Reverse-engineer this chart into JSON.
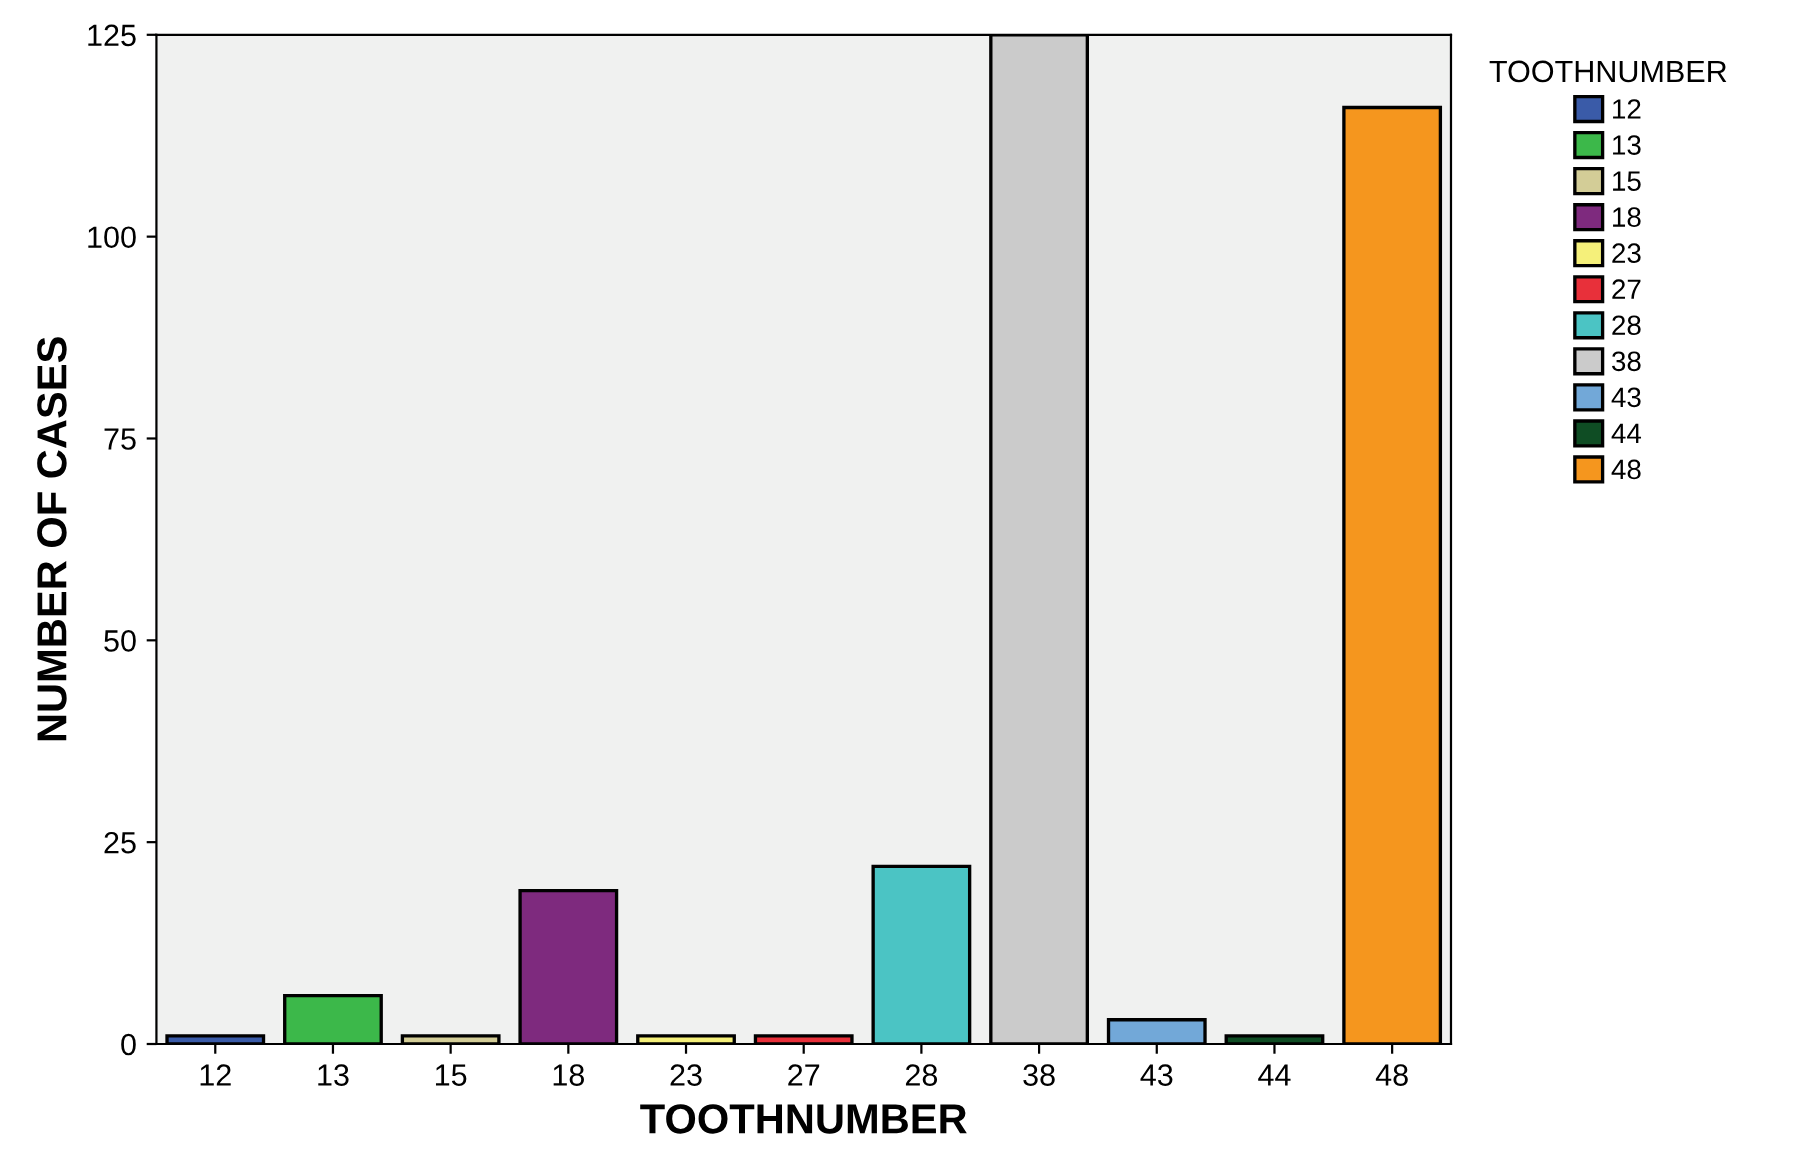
{
  "chart_data": {
    "type": "bar",
    "xlabel": "TOOTHNUMBER",
    "ylabel": "NUMBER OF CASES",
    "legend_title": "TOOTHNUMBER",
    "categories": [
      "12",
      "13",
      "15",
      "18",
      "23",
      "27",
      "28",
      "38",
      "43",
      "44",
      "48"
    ],
    "series": [
      {
        "name": "12",
        "color": "#3a5ba8",
        "values": [
          1,
          null,
          null,
          null,
          null,
          null,
          null,
          null,
          null,
          null,
          null
        ]
      },
      {
        "name": "13",
        "color": "#3cb84a",
        "values": [
          null,
          6,
          null,
          null,
          null,
          null,
          null,
          null,
          null,
          null,
          null
        ]
      },
      {
        "name": "15",
        "color": "#d3cd97",
        "values": [
          null,
          null,
          1,
          null,
          null,
          null,
          null,
          null,
          null,
          null,
          null
        ]
      },
      {
        "name": "18",
        "color": "#7e2a7e",
        "values": [
          null,
          null,
          null,
          19,
          null,
          null,
          null,
          null,
          null,
          null,
          null
        ]
      },
      {
        "name": "23",
        "color": "#f5f07a",
        "values": [
          null,
          null,
          null,
          null,
          1,
          null,
          null,
          null,
          null,
          null,
          null
        ]
      },
      {
        "name": "27",
        "color": "#e8303a",
        "values": [
          null,
          null,
          null,
          null,
          null,
          1,
          null,
          null,
          null,
          null,
          null
        ]
      },
      {
        "name": "28",
        "color": "#4bc4c4",
        "values": [
          null,
          null,
          null,
          null,
          null,
          null,
          22,
          null,
          null,
          null,
          null
        ]
      },
      {
        "name": "38",
        "color": "#cbcbcb",
        "values": [
          null,
          null,
          null,
          null,
          null,
          null,
          null,
          125,
          null,
          null,
          null
        ]
      },
      {
        "name": "43",
        "color": "#72a8d8",
        "values": [
          null,
          null,
          null,
          null,
          null,
          null,
          null,
          null,
          3,
          null,
          null
        ]
      },
      {
        "name": "44",
        "color": "#0f4d24",
        "values": [
          null,
          null,
          null,
          null,
          null,
          null,
          null,
          null,
          null,
          1,
          null
        ]
      },
      {
        "name": "48",
        "color": "#f5961e",
        "values": [
          null,
          null,
          null,
          null,
          null,
          null,
          null,
          null,
          null,
          null,
          116
        ]
      }
    ],
    "ylim": [
      0,
      125
    ],
    "yticks": [
      0,
      25,
      50,
      75,
      100,
      125
    ],
    "legend": "right",
    "grid": false
  }
}
